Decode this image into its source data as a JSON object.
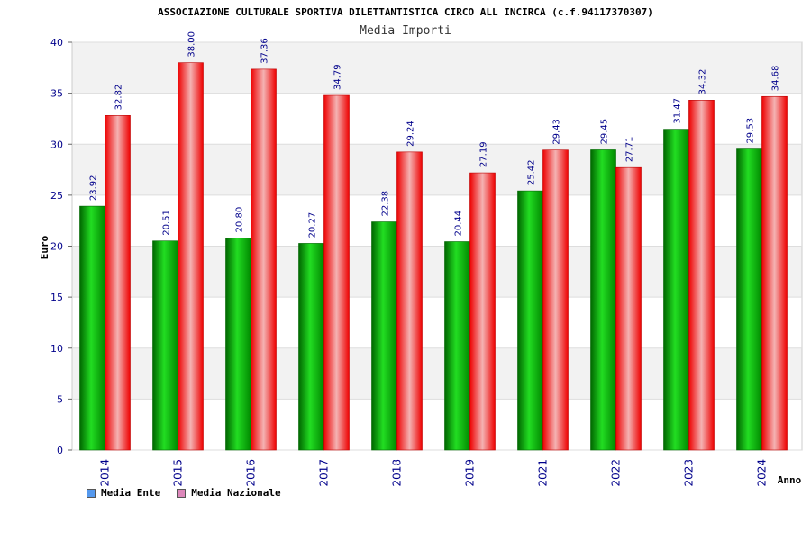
{
  "chart_data": {
    "type": "bar",
    "title": "ASSOCIAZIONE CULTURALE SPORTIVA DILETTANTISTICA CIRCO ALL INCIRCA (c.f.94117370307)",
    "subtitle": "Media Importi",
    "xlabel": "Anno",
    "ylabel": "Euro",
    "ylim": [
      0,
      40
    ],
    "yticks": [
      0,
      5,
      10,
      15,
      20,
      25,
      30,
      35,
      40
    ],
    "grid": true,
    "legend_position": "bottom-left",
    "categories": [
      "2014",
      "2015",
      "2016",
      "2017",
      "2018",
      "2019",
      "2021",
      "2022",
      "2023",
      "2024"
    ],
    "series": [
      {
        "name": "Media Ente",
        "color": "#00b000",
        "legend_color": "#5599ee",
        "values": [
          23.92,
          20.51,
          20.8,
          20.27,
          22.38,
          20.44,
          25.42,
          29.45,
          31.47,
          29.53
        ],
        "labels": [
          "23.92",
          "20.51",
          "20.80",
          "20.27",
          "22.38",
          "20.44",
          "25.42",
          "29.45",
          "31.47",
          "29.53"
        ]
      },
      {
        "name": "Media Nazionale",
        "color": "#ee1111",
        "legend_color": "#dd88bb",
        "values": [
          32.82,
          38.0,
          37.36,
          34.79,
          29.24,
          27.19,
          29.43,
          27.71,
          34.32,
          34.68
        ],
        "labels": [
          "32.82",
          "38.00",
          "37.36",
          "34.79",
          "29.24",
          "27.19",
          "29.43",
          "27.71",
          "34.32",
          "34.68"
        ]
      }
    ]
  }
}
